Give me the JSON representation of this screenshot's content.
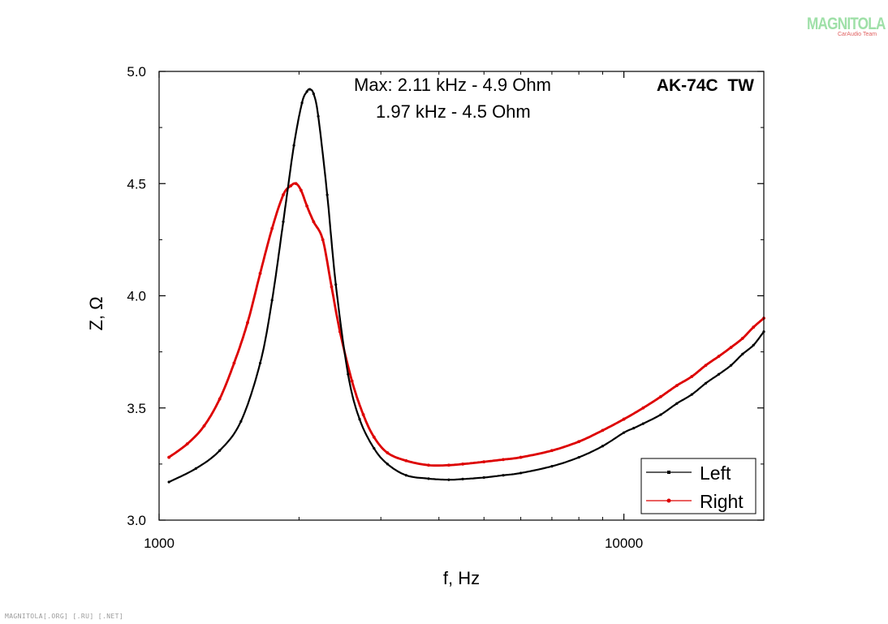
{
  "watermark": {
    "logo": "MAGNITOLA",
    "logo_sub": "CarAudio Team",
    "footer": "MAGNITOLA[.ORG] [.RU] [.NET]"
  },
  "chart_data": {
    "type": "line",
    "title": "AK-74C  TW",
    "annotations": [
      "Max: 2.11 kHz - 4.9 Ohm",
      "1.97 kHz - 4.5 Ohm"
    ],
    "xlabel": "f, Hz",
    "ylabel": "Z, Ω",
    "xscale": "log",
    "xlim": [
      1000,
      20000
    ],
    "ylim": [
      3.0,
      5.0
    ],
    "xticks": [
      1000,
      10000
    ],
    "xtick_labels": [
      "1000",
      "10000"
    ],
    "yticks": [
      3.0,
      3.5,
      4.0,
      4.5,
      5.0
    ],
    "ytick_labels": [
      "3.0",
      "3.5",
      "4.0",
      "4.5",
      "5.0"
    ],
    "grid": false,
    "legend_position": "bottom-right",
    "series": [
      {
        "name": "Left",
        "color": "#000000",
        "x": [
          1050,
          1200,
          1350,
          1500,
          1650,
          1750,
          1850,
          1950,
          2030,
          2080,
          2110,
          2150,
          2200,
          2300,
          2400,
          2550,
          2700,
          2900,
          3100,
          3400,
          3800,
          4200,
          4500,
          5000,
          5500,
          6000,
          7000,
          8000,
          9000,
          10000,
          10500,
          11000,
          12000,
          13000,
          14000,
          15000,
          16000,
          17000,
          18000,
          19000,
          20000
        ],
        "y": [
          3.17,
          3.23,
          3.31,
          3.44,
          3.7,
          3.98,
          4.33,
          4.67,
          4.86,
          4.91,
          4.92,
          4.9,
          4.8,
          4.45,
          4.05,
          3.65,
          3.45,
          3.32,
          3.25,
          3.2,
          3.185,
          3.18,
          3.183,
          3.19,
          3.2,
          3.21,
          3.24,
          3.28,
          3.33,
          3.39,
          3.41,
          3.43,
          3.47,
          3.52,
          3.56,
          3.61,
          3.65,
          3.69,
          3.74,
          3.78,
          3.84
        ]
      },
      {
        "name": "Right",
        "color": "#dd0000",
        "x": [
          1050,
          1150,
          1250,
          1350,
          1450,
          1550,
          1650,
          1750,
          1850,
          1920,
          1970,
          2020,
          2080,
          2150,
          2250,
          2350,
          2450,
          2600,
          2750,
          2900,
          3100,
          3400,
          3800,
          4200,
          4500,
          5000,
          5500,
          6000,
          7000,
          8000,
          9000,
          10000,
          11000,
          12000,
          13000,
          14000,
          15000,
          16000,
          17000,
          18000,
          19000,
          20000
        ],
        "y": [
          3.28,
          3.34,
          3.42,
          3.54,
          3.7,
          3.88,
          4.1,
          4.3,
          4.45,
          4.49,
          4.5,
          4.47,
          4.4,
          4.33,
          4.25,
          4.04,
          3.84,
          3.62,
          3.47,
          3.37,
          3.3,
          3.265,
          3.245,
          3.245,
          3.25,
          3.26,
          3.27,
          3.28,
          3.31,
          3.35,
          3.4,
          3.45,
          3.5,
          3.55,
          3.6,
          3.64,
          3.69,
          3.73,
          3.77,
          3.81,
          3.86,
          3.9
        ]
      }
    ]
  }
}
